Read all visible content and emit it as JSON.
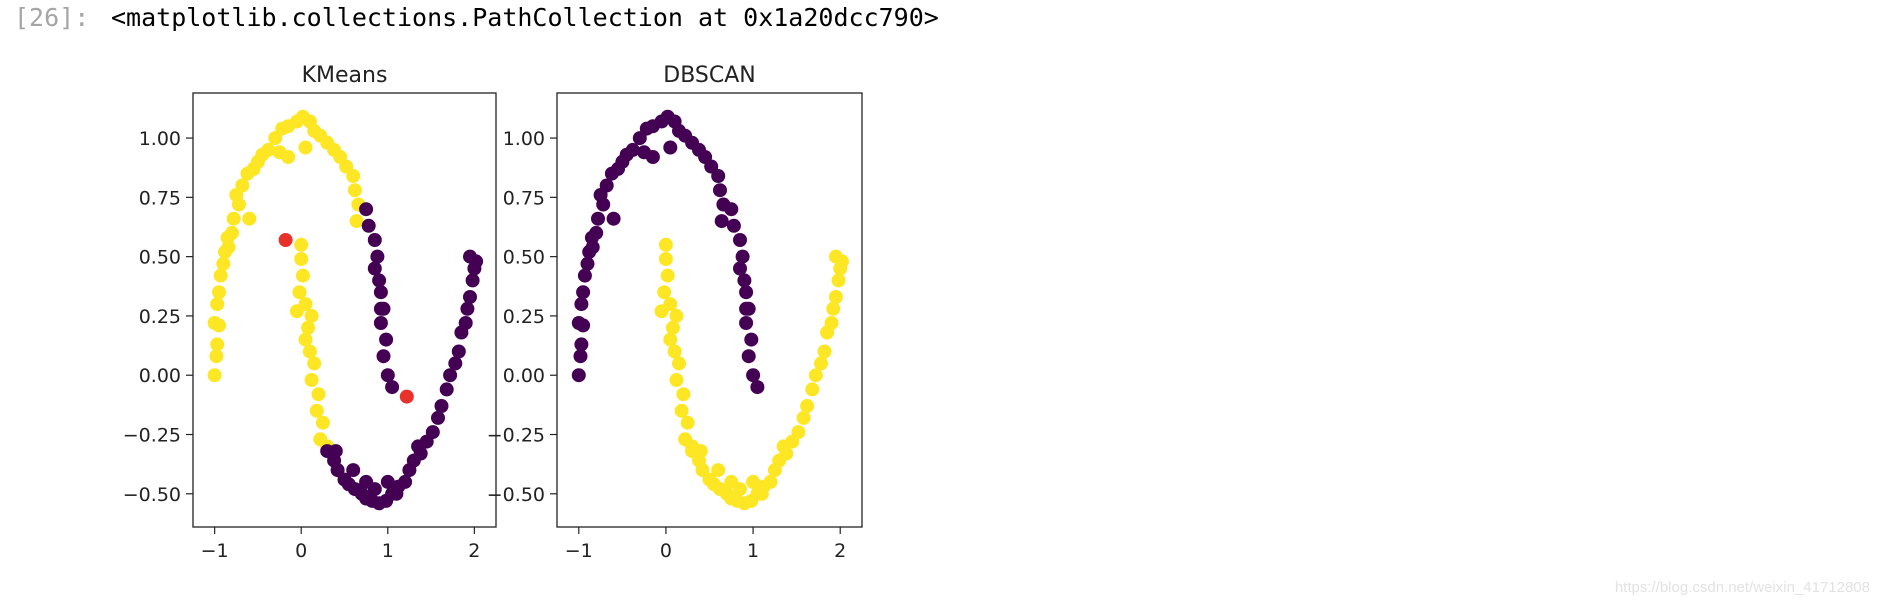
{
  "output": {
    "prompt": "[26]:",
    "text": "<matplotlib.collections.PathCollection at 0x1a20dcc790>"
  },
  "watermark": "https://blog.csdn.net/weixin_41712808",
  "colors": {
    "cluster_0": "#440154",
    "cluster_1": "#fde725",
    "centroid": "#e8312a",
    "axis": "#222222"
  },
  "chart_data": [
    {
      "type": "scatter",
      "title": "KMeans",
      "xlim": [
        -1.25,
        2.25
      ],
      "ylim": [
        -0.64,
        1.19
      ],
      "xticks": [
        -1,
        0,
        1,
        2
      ],
      "xtick_labels": [
        "−1",
        "0",
        "1",
        "2"
      ],
      "yticks": [
        -0.5,
        -0.25,
        0.0,
        0.25,
        0.5,
        0.75,
        1.0
      ],
      "ytick_labels": [
        "−0.50",
        "−0.25",
        "0.00",
        "0.25",
        "0.50",
        "0.75",
        "1.00"
      ],
      "series": [
        {
          "color": "#fde725",
          "points": [
            [
              -1.0,
              0.0
            ],
            [
              -0.98,
              0.08
            ],
            [
              -0.97,
              0.13
            ],
            [
              -1.0,
              0.22
            ],
            [
              -0.95,
              0.21
            ],
            [
              -0.97,
              0.3
            ],
            [
              -0.95,
              0.35
            ],
            [
              -0.93,
              0.42
            ],
            [
              -0.9,
              0.47
            ],
            [
              -0.88,
              0.52
            ],
            [
              -0.84,
              0.54
            ],
            [
              -0.85,
              0.58
            ],
            [
              -0.8,
              0.6
            ],
            [
              -0.78,
              0.66
            ],
            [
              -0.72,
              0.72
            ],
            [
              -0.75,
              0.76
            ],
            [
              -0.68,
              0.8
            ],
            [
              -0.62,
              0.85
            ],
            [
              -0.55,
              0.87
            ],
            [
              -0.5,
              0.9
            ],
            [
              -0.45,
              0.93
            ],
            [
              -0.38,
              0.95
            ],
            [
              -0.3,
              1.0
            ],
            [
              -0.22,
              1.04
            ],
            [
              -0.15,
              1.05
            ],
            [
              -0.05,
              1.07
            ],
            [
              0.02,
              1.09
            ],
            [
              0.1,
              1.07
            ],
            [
              0.15,
              1.03
            ],
            [
              0.22,
              1.01
            ],
            [
              0.3,
              0.98
            ],
            [
              0.38,
              0.95
            ],
            [
              0.45,
              0.92
            ],
            [
              0.52,
              0.88
            ],
            [
              0.6,
              0.84
            ],
            [
              0.62,
              0.78
            ],
            [
              0.66,
              0.72
            ],
            [
              0.64,
              0.65
            ],
            [
              -0.6,
              0.66
            ],
            [
              -0.25,
              0.94
            ],
            [
              0.05,
              0.96
            ],
            [
              -0.15,
              0.92
            ],
            [
              0.0,
              0.49
            ],
            [
              0.02,
              0.42
            ],
            [
              -0.02,
              0.35
            ],
            [
              0.05,
              0.3
            ],
            [
              -0.05,
              0.27
            ],
            [
              0.08,
              0.2
            ],
            [
              0.05,
              0.15
            ],
            [
              0.1,
              0.1
            ],
            [
              0.15,
              0.05
            ],
            [
              0.12,
              -0.02
            ],
            [
              0.2,
              -0.08
            ],
            [
              0.18,
              -0.15
            ],
            [
              0.25,
              -0.2
            ],
            [
              0.22,
              -0.27
            ],
            [
              0.3,
              -0.3
            ],
            [
              0.0,
              0.55
            ],
            [
              0.12,
              0.25
            ]
          ]
        },
        {
          "color": "#440154",
          "points": [
            [
              0.75,
              0.7
            ],
            [
              0.78,
              0.63
            ],
            [
              0.85,
              0.57
            ],
            [
              0.88,
              0.5
            ],
            [
              0.85,
              0.45
            ],
            [
              0.9,
              0.4
            ],
            [
              0.92,
              0.35
            ],
            [
              0.95,
              0.28
            ],
            [
              0.92,
              0.22
            ],
            [
              0.98,
              0.15
            ],
            [
              0.95,
              0.08
            ],
            [
              1.0,
              0.0
            ],
            [
              1.05,
              -0.05
            ],
            [
              0.92,
              0.28
            ],
            [
              0.3,
              -0.32
            ],
            [
              0.38,
              -0.36
            ],
            [
              0.42,
              -0.4
            ],
            [
              0.5,
              -0.44
            ],
            [
              0.55,
              -0.46
            ],
            [
              0.62,
              -0.48
            ],
            [
              0.7,
              -0.5
            ],
            [
              0.75,
              -0.52
            ],
            [
              0.82,
              -0.53
            ],
            [
              0.9,
              -0.54
            ],
            [
              0.98,
              -0.53
            ],
            [
              1.05,
              -0.5
            ],
            [
              1.12,
              -0.47
            ],
            [
              1.2,
              -0.45
            ],
            [
              1.25,
              -0.4
            ],
            [
              1.3,
              -0.36
            ],
            [
              1.38,
              -0.33
            ],
            [
              1.45,
              -0.28
            ],
            [
              1.52,
              -0.24
            ],
            [
              1.58,
              -0.18
            ],
            [
              1.62,
              -0.13
            ],
            [
              1.68,
              -0.06
            ],
            [
              1.72,
              0.0
            ],
            [
              1.78,
              0.05
            ],
            [
              1.82,
              0.1
            ],
            [
              1.85,
              0.18
            ],
            [
              1.9,
              0.22
            ],
            [
              1.92,
              0.28
            ],
            [
              1.95,
              0.33
            ],
            [
              1.98,
              0.4
            ],
            [
              2.0,
              0.45
            ],
            [
              1.95,
              0.5
            ],
            [
              2.02,
              0.48
            ],
            [
              0.6,
              -0.4
            ],
            [
              0.75,
              -0.45
            ],
            [
              1.0,
              -0.45
            ],
            [
              0.85,
              -0.48
            ],
            [
              1.1,
              -0.5
            ],
            [
              0.4,
              -0.32
            ],
            [
              1.35,
              -0.3
            ]
          ]
        },
        {
          "color": "#e8312a",
          "points": [
            [
              -0.18,
              0.57
            ],
            [
              1.22,
              -0.09
            ]
          ]
        }
      ]
    },
    {
      "type": "scatter",
      "title": "DBSCAN",
      "xlim": [
        -1.25,
        2.25
      ],
      "ylim": [
        -0.64,
        1.19
      ],
      "xticks": [
        -1,
        0,
        1,
        2
      ],
      "xtick_labels": [
        "−1",
        "0",
        "1",
        "2"
      ],
      "yticks": [
        -0.5,
        -0.25,
        0.0,
        0.25,
        0.5,
        0.75,
        1.0
      ],
      "ytick_labels": [
        "−0.50",
        "−0.25",
        "0.00",
        "0.25",
        "0.50",
        "0.75",
        "1.00"
      ],
      "series": [
        {
          "color": "#440154",
          "points": [
            [
              -1.0,
              0.0
            ],
            [
              -0.98,
              0.08
            ],
            [
              -0.97,
              0.13
            ],
            [
              -1.0,
              0.22
            ],
            [
              -0.95,
              0.21
            ],
            [
              -0.97,
              0.3
            ],
            [
              -0.95,
              0.35
            ],
            [
              -0.93,
              0.42
            ],
            [
              -0.9,
              0.47
            ],
            [
              -0.88,
              0.52
            ],
            [
              -0.84,
              0.54
            ],
            [
              -0.85,
              0.58
            ],
            [
              -0.8,
              0.6
            ],
            [
              -0.78,
              0.66
            ],
            [
              -0.72,
              0.72
            ],
            [
              -0.75,
              0.76
            ],
            [
              -0.68,
              0.8
            ],
            [
              -0.62,
              0.85
            ],
            [
              -0.55,
              0.87
            ],
            [
              -0.5,
              0.9
            ],
            [
              -0.45,
              0.93
            ],
            [
              -0.38,
              0.95
            ],
            [
              -0.3,
              1.0
            ],
            [
              -0.22,
              1.04
            ],
            [
              -0.15,
              1.05
            ],
            [
              -0.05,
              1.07
            ],
            [
              0.02,
              1.09
            ],
            [
              0.1,
              1.07
            ],
            [
              0.15,
              1.03
            ],
            [
              0.22,
              1.01
            ],
            [
              0.3,
              0.98
            ],
            [
              0.38,
              0.95
            ],
            [
              0.45,
              0.92
            ],
            [
              0.52,
              0.88
            ],
            [
              0.6,
              0.84
            ],
            [
              0.62,
              0.78
            ],
            [
              0.66,
              0.72
            ],
            [
              0.64,
              0.65
            ],
            [
              -0.6,
              0.66
            ],
            [
              -0.25,
              0.94
            ],
            [
              0.05,
              0.96
            ],
            [
              -0.15,
              0.92
            ],
            [
              0.75,
              0.7
            ],
            [
              0.78,
              0.63
            ],
            [
              0.85,
              0.57
            ],
            [
              0.88,
              0.5
            ],
            [
              0.85,
              0.45
            ],
            [
              0.9,
              0.4
            ],
            [
              0.92,
              0.35
            ],
            [
              0.95,
              0.28
            ],
            [
              0.92,
              0.22
            ],
            [
              0.98,
              0.15
            ],
            [
              0.95,
              0.08
            ],
            [
              1.0,
              0.0
            ],
            [
              1.05,
              -0.05
            ],
            [
              0.92,
              0.28
            ]
          ]
        },
        {
          "color": "#fde725",
          "points": [
            [
              0.0,
              0.49
            ],
            [
              0.02,
              0.42
            ],
            [
              -0.02,
              0.35
            ],
            [
              0.05,
              0.3
            ],
            [
              -0.05,
              0.27
            ],
            [
              0.08,
              0.2
            ],
            [
              0.05,
              0.15
            ],
            [
              0.1,
              0.1
            ],
            [
              0.15,
              0.05
            ],
            [
              0.12,
              -0.02
            ],
            [
              0.2,
              -0.08
            ],
            [
              0.18,
              -0.15
            ],
            [
              0.25,
              -0.2
            ],
            [
              0.22,
              -0.27
            ],
            [
              0.3,
              -0.3
            ],
            [
              0.0,
              0.55
            ],
            [
              0.12,
              0.25
            ],
            [
              0.3,
              -0.32
            ],
            [
              0.38,
              -0.36
            ],
            [
              0.42,
              -0.4
            ],
            [
              0.5,
              -0.44
            ],
            [
              0.55,
              -0.46
            ],
            [
              0.62,
              -0.48
            ],
            [
              0.7,
              -0.5
            ],
            [
              0.75,
              -0.52
            ],
            [
              0.82,
              -0.53
            ],
            [
              0.9,
              -0.54
            ],
            [
              0.98,
              -0.53
            ],
            [
              1.05,
              -0.5
            ],
            [
              1.12,
              -0.47
            ],
            [
              1.2,
              -0.45
            ],
            [
              1.25,
              -0.4
            ],
            [
              1.3,
              -0.36
            ],
            [
              1.38,
              -0.33
            ],
            [
              1.45,
              -0.28
            ],
            [
              1.52,
              -0.24
            ],
            [
              1.58,
              -0.18
            ],
            [
              1.62,
              -0.13
            ],
            [
              1.68,
              -0.06
            ],
            [
              1.72,
              0.0
            ],
            [
              1.78,
              0.05
            ],
            [
              1.82,
              0.1
            ],
            [
              1.85,
              0.18
            ],
            [
              1.9,
              0.22
            ],
            [
              1.92,
              0.28
            ],
            [
              1.95,
              0.33
            ],
            [
              1.98,
              0.4
            ],
            [
              2.0,
              0.45
            ],
            [
              1.95,
              0.5
            ],
            [
              2.02,
              0.48
            ],
            [
              0.6,
              -0.4
            ],
            [
              0.75,
              -0.45
            ],
            [
              1.0,
              -0.45
            ],
            [
              0.85,
              -0.48
            ],
            [
              1.1,
              -0.5
            ],
            [
              0.4,
              -0.32
            ],
            [
              1.35,
              -0.3
            ]
          ]
        }
      ]
    }
  ]
}
